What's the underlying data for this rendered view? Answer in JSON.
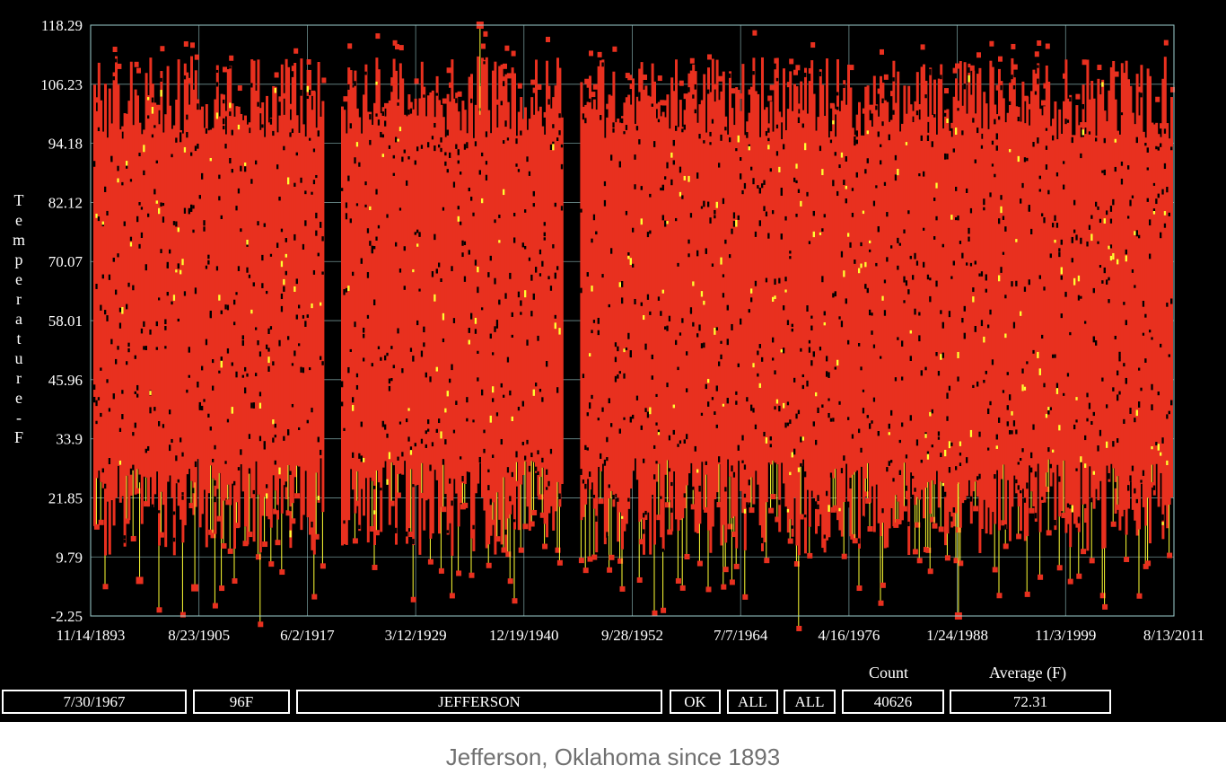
{
  "chart_data": {
    "type": "scatter",
    "title": "",
    "ylabel": "Temperature - F",
    "ylabel_letters": [
      "T",
      "e",
      "m",
      "p",
      "e",
      "r",
      "a",
      "t",
      "u",
      "r",
      "e",
      "-",
      "F"
    ],
    "yticks": [
      "118.29",
      "106.23",
      "94.18",
      "82.12",
      "70.07",
      "58.01",
      "45.96",
      "33.9",
      "21.85",
      "9.79",
      "-2.25"
    ],
    "ylim": [
      -2.25,
      118.29
    ],
    "xticks": [
      "11/14/1893",
      "8/23/1905",
      "6/2/1917",
      "3/12/1929",
      "12/19/1940",
      "9/28/1952",
      "7/7/1964",
      "4/16/1976",
      "1/24/1988",
      "11/3/1999",
      "8/13/2011"
    ],
    "xlim": [
      "11/14/1893",
      "8/13/2011"
    ],
    "grid": true,
    "colors": {
      "background": "#000000",
      "points": "#e8301f",
      "highlight": "#ffff33",
      "grid": "#9ecfcf",
      "text": "#ffffff"
    },
    "data_gaps": [
      [
        "1919",
        "1920"
      ],
      [
        "1945",
        "1946"
      ]
    ],
    "notable_points": [
      {
        "x": "1936",
        "y": 118.29
      },
      {
        "x": "1988",
        "y": -2.25
      },
      {
        "x": "1905",
        "y": 3.5
      },
      {
        "x": "1899",
        "y": 5.0
      }
    ],
    "typical_daily_max_range": [
      95,
      112
    ],
    "typical_daily_min_range": [
      10,
      30
    ]
  },
  "footer": {
    "date": "7/30/1967",
    "temp": "96F",
    "station": "JEFFERSON",
    "state": "OK",
    "filter1": "ALL",
    "filter2": "ALL",
    "count_label": "Count",
    "count": "40626",
    "average_label": "Average (F)",
    "average": "72.31"
  },
  "caption": "Jefferson, Oklahoma since 1893"
}
